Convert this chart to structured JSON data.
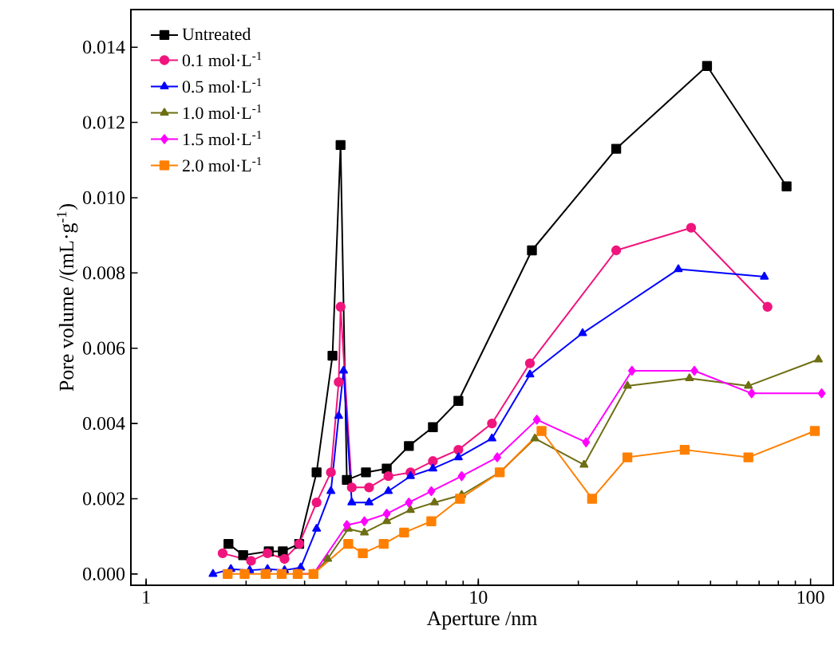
{
  "chart_data": {
    "type": "line",
    "xlabel": "Aperture /nm",
    "ylabel": "Pore volume /(mL·g$^{-1}$)",
    "log": "x",
    "xlim": [
      0.9,
      117
    ],
    "ylim": [
      -0.0003,
      0.015
    ],
    "xticks": [
      1,
      10,
      100
    ],
    "yticks": [
      {
        "value": 0,
        "label": "0.000"
      },
      {
        "value": 0.002,
        "label": "0.002"
      },
      {
        "value": 0.004,
        "label": "0.004"
      },
      {
        "value": 0.006,
        "label": "0.006"
      },
      {
        "value": 0.008,
        "label": "0.008"
      },
      {
        "value": 0.01,
        "label": "0.010"
      },
      {
        "value": 0.012,
        "label": "0.012"
      },
      {
        "value": 0.014,
        "label": "0.014"
      }
    ],
    "legend": "top left",
    "grid": false,
    "line_style": "solid",
    "series": [
      {
        "name": "Untreated",
        "color": "#000000",
        "marker": "square",
        "x": [
          1.77,
          1.96,
          2.34,
          2.58,
          2.89,
          3.26,
          3.64,
          3.85,
          4.02,
          4.59,
          5.3,
          6.18,
          7.3,
          8.71,
          14.5,
          26.0,
          48.8,
          84.7
        ],
        "values": [
          0.0008,
          0.0005,
          0.0006,
          0.0006,
          0.0008,
          0.0027,
          0.0058,
          0.0114,
          0.0025,
          0.0027,
          0.0028,
          0.0034,
          0.0039,
          0.0046,
          0.0086,
          0.0113,
          0.0135,
          0.0103
        ]
      },
      {
        "name": "0.1 mol·L$^{-1}$",
        "color": "#f0157d",
        "marker": "circle",
        "x": [
          1.7,
          2.07,
          2.32,
          2.61,
          2.89,
          3.26,
          3.6,
          3.8,
          3.85,
          4.16,
          4.69,
          5.36,
          6.25,
          7.3,
          8.71,
          10.99,
          14.3,
          26.0,
          43.7,
          74.2
        ],
        "values": [
          0.00055,
          0.00035,
          0.00055,
          0.0004,
          0.0008,
          0.0019,
          0.0027,
          0.0051,
          0.0071,
          0.0023,
          0.0023,
          0.0026,
          0.0027,
          0.003,
          0.0033,
          0.004,
          0.0056,
          0.0086,
          0.0092,
          0.0071
        ]
      },
      {
        "name": "0.5 mol·L$^{-1}$",
        "color": "#0000ff",
        "marker": "triangle",
        "x": [
          1.59,
          1.8,
          2.05,
          2.32,
          2.61,
          2.92,
          3.26,
          3.6,
          3.8,
          3.93,
          4.16,
          4.69,
          5.36,
          6.25,
          7.3,
          8.71,
          10.99,
          14.3,
          20.6,
          40.0,
          72.6
        ],
        "values": [
          0,
          0.00013,
          0.0001,
          0.00013,
          0.0001,
          0.00017,
          0.0012,
          0.0022,
          0.0042,
          0.0054,
          0.0019,
          0.0019,
          0.0022,
          0.0026,
          0.0028,
          0.0031,
          0.0036,
          0.0053,
          0.0064,
          0.0081,
          0.0079
        ]
      },
      {
        "name": "1.0 mol·L$^{-1}$",
        "color": "#6e6e14",
        "marker": "triangle",
        "x": [
          2.86,
          3.19,
          3.52,
          4.06,
          4.54,
          5.3,
          6.25,
          7.38,
          8.91,
          11.6,
          14.8,
          20.8,
          28.1,
          43.2,
          65.0,
          105.6
        ],
        "values": [
          0,
          0,
          0.0004,
          0.0012,
          0.0011,
          0.0014,
          0.0017,
          0.0019,
          0.0021,
          0.0027,
          0.0036,
          0.0029,
          0.005,
          0.0052,
          0.005,
          0.0057
        ]
      },
      {
        "name": "1.5 mol·L$^{-1}$",
        "color": "#ff00ff",
        "marker": "diamond",
        "x": [
          2.86,
          3.19,
          4.02,
          4.54,
          5.3,
          6.18,
          7.22,
          8.91,
          11.4,
          15.0,
          21.1,
          29.0,
          44.7,
          66.5,
          108.0
        ],
        "values": [
          0,
          0,
          0.0013,
          0.0014,
          0.0016,
          0.0019,
          0.0022,
          0.0026,
          0.0031,
          0.0041,
          0.0035,
          0.0054,
          0.0054,
          0.0048,
          0.0048
        ]
      },
      {
        "name": "2.0 mol·L$^{-1}$",
        "color": "#ff8000",
        "marker": "square",
        "x": [
          1.76,
          1.98,
          2.29,
          2.56,
          2.86,
          3.19,
          4.06,
          4.49,
          5.19,
          5.98,
          7.22,
          8.81,
          11.6,
          15.5,
          22.0,
          28.1,
          41.8,
          65.0,
          103.0
        ],
        "values": [
          0,
          0,
          0,
          0,
          0,
          0,
          0.0008,
          0.00055,
          0.0008,
          0.0011,
          0.0014,
          0.002,
          0.0027,
          0.0038,
          0.002,
          0.0031,
          0.0033,
          0.0031,
          0.0038
        ]
      }
    ]
  }
}
